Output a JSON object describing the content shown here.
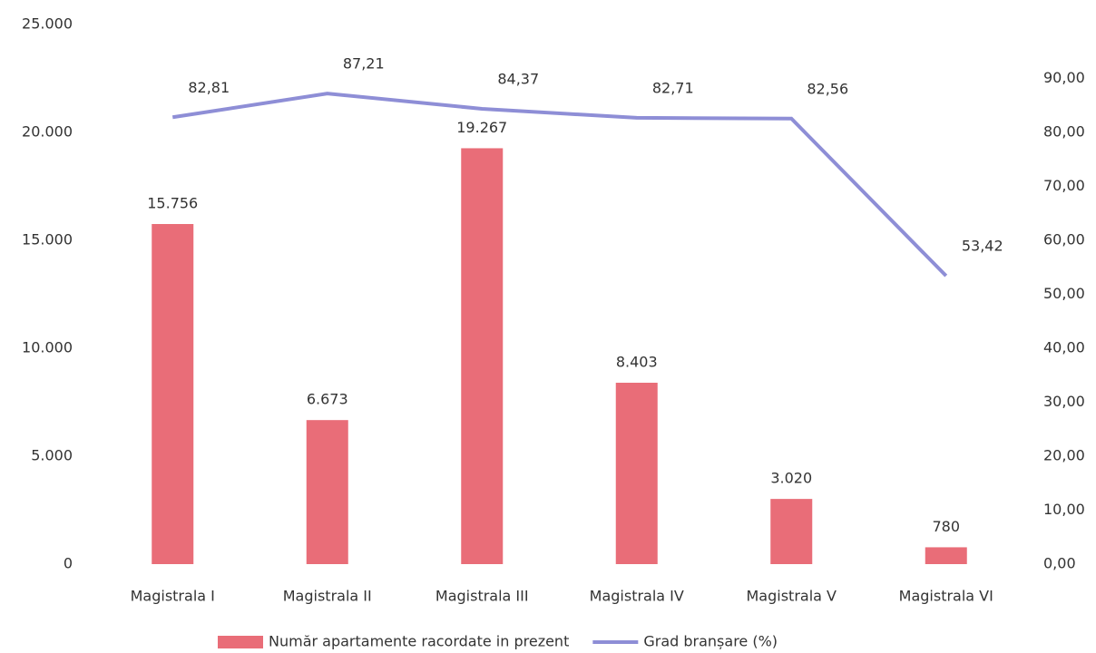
{
  "chart_data": {
    "type": "bar",
    "categories": [
      "Magistrala I",
      "Magistrala II",
      "Magistrala III",
      "Magistrala IV",
      "Magistrala V",
      "Magistrala VI"
    ],
    "series": [
      {
        "name": "Număr apartamente racordate in prezent",
        "type": "bar",
        "color": "#e96d78",
        "values": [
          15756,
          6673,
          19267,
          8403,
          3020,
          780
        ],
        "value_labels": [
          "15.756",
          "6.673",
          "19.267",
          "8.403",
          "3.020",
          "780"
        ]
      },
      {
        "name": "Grad branșare (%)",
        "type": "line",
        "axis": "y2",
        "color": "#8e8ed6",
        "values": [
          82.81,
          87.21,
          84.37,
          82.71,
          82.56,
          53.42
        ],
        "value_labels": [
          "82,81",
          "87,21",
          "84,37",
          "82,71",
          "82,56",
          "53,42"
        ]
      }
    ],
    "ylim": [
      0,
      25000
    ],
    "yticks": [
      0,
      {
        "value": 5000,
        "label": "5.000"
      },
      {
        "value": 10000,
        "label": "10.000"
      },
      {
        "value": 15000,
        "label": "15.000"
      },
      {
        "value": 20000,
        "label": "20.000"
      },
      {
        "value": 25000,
        "label": "25.000"
      }
    ],
    "y2lim": [
      0,
      100
    ],
    "y2ticks": [
      {
        "value": 0,
        "label": "0,00"
      },
      {
        "value": 10,
        "label": "10,00"
      },
      {
        "value": 20,
        "label": "20,00"
      },
      {
        "value": 30,
        "label": "30,00"
      },
      {
        "value": 40,
        "label": "40,00"
      },
      {
        "value": 50,
        "label": "50,00"
      },
      {
        "value": 60,
        "label": "60,00"
      },
      {
        "value": 70,
        "label": "70,00"
      },
      {
        "value": 80,
        "label": "80,00"
      },
      {
        "value": 90,
        "label": "90,00"
      }
    ],
    "grid": false,
    "legend": "bottom"
  }
}
